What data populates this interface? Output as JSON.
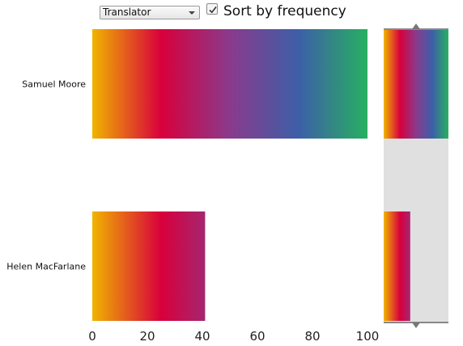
{
  "controls": {
    "group_by_select": {
      "selected": "Translator"
    },
    "sort_checkbox": {
      "checked": true,
      "label": "Sort by frequency"
    }
  },
  "chart_data": {
    "type": "bar",
    "orientation": "horizontal",
    "categories": [
      "Samuel Moore",
      "Helen MacFarlane"
    ],
    "values": [
      100,
      41
    ],
    "xlim": [
      0,
      100
    ],
    "xticks": [
      0,
      20,
      40,
      60,
      80,
      100
    ],
    "bar_fill": "gradient",
    "gradient_stops": [
      "#f0b400",
      "#d8003c",
      "#8a3a8c",
      "#3d5fa8",
      "#27b060"
    ],
    "overview_panel": true
  },
  "colors": {
    "overview_background": "#e0e0e0",
    "overview_border": "#888888",
    "tick_label": "#222222"
  }
}
